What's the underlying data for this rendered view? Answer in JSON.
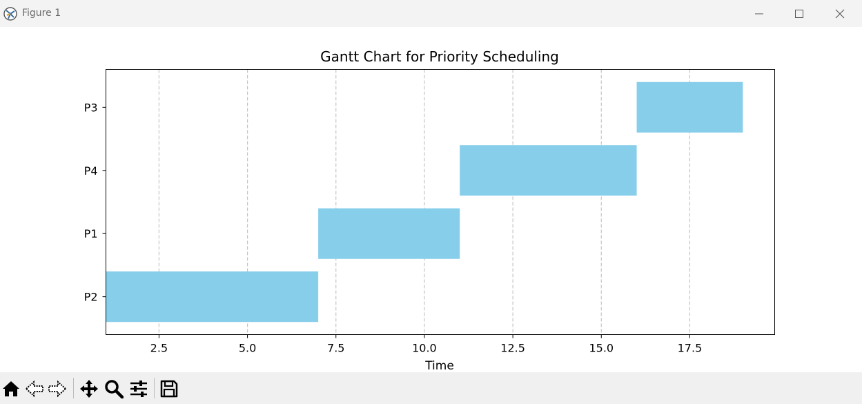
{
  "window": {
    "title": "Figure 1",
    "controls": {
      "minimize": "minimize-icon",
      "maximize": "maximize-icon",
      "close": "close-icon"
    }
  },
  "toolbar": {
    "buttons": [
      "home-icon",
      "back-icon",
      "forward-icon",
      "pan-icon",
      "zoom-icon",
      "configure-subplots-icon",
      "save-icon"
    ]
  },
  "chart_data": {
    "type": "bar",
    "orientation": "horizontal",
    "title": "Gantt Chart for Priority Scheduling",
    "xlabel": "Time",
    "ylabel": "",
    "xlim": [
      1.0,
      19.9
    ],
    "x_ticks": [
      2.5,
      5.0,
      7.5,
      10.0,
      12.5,
      15.0,
      17.5
    ],
    "x_tick_labels": [
      "2.5",
      "5.0",
      "7.5",
      "10.0",
      "12.5",
      "15.0",
      "17.5"
    ],
    "categories": [
      "P2",
      "P1",
      "P4",
      "P3"
    ],
    "tasks": [
      {
        "name": "P2",
        "start": 1,
        "end": 7
      },
      {
        "name": "P1",
        "start": 7,
        "end": 11
      },
      {
        "name": "P4",
        "start": 11,
        "end": 16
      },
      {
        "name": "P3",
        "start": 16,
        "end": 19
      }
    ],
    "bar_color": "#87ceeb",
    "grid": "x-dashed"
  }
}
